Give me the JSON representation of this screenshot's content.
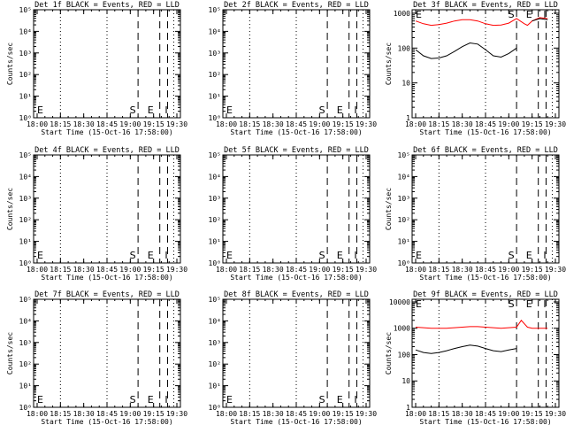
{
  "chart_data": [
    {
      "type": "line",
      "title": "Det 1f BLACK = Events, RED = LLD",
      "xlabel": "Start Time (15-Oct-16 17:58:00)",
      "ylabel": "Counts/sec",
      "y_scale": "log",
      "y_ticks": [
        "10⁰",
        "10¹",
        "10²",
        "10³",
        "10⁴",
        "10⁵"
      ],
      "x_ticks": [
        "18:00",
        "18:15",
        "18:30",
        "18:45",
        "19:00",
        "19:15",
        "19:30"
      ],
      "markers": [
        {
          "label": "E",
          "x": "18:00"
        },
        {
          "label": "S",
          "x": "19:05"
        },
        {
          "label": "E",
          "x": "19:17"
        },
        {
          "label": "I",
          "x": "19:22"
        }
      ],
      "series": []
    },
    {
      "type": "line",
      "title": "Det 2f BLACK = Events, RED = LLD",
      "xlabel": "Start Time (15-Oct-16 17:58:00)",
      "ylabel": "",
      "y_scale": "log",
      "y_ticks": [
        "10⁰",
        "10¹",
        "10²",
        "10³",
        "10⁴",
        "10⁵"
      ],
      "x_ticks": [
        "18:00",
        "18:15",
        "18:30",
        "18:45",
        "19:00",
        "19:15",
        "19:30"
      ],
      "markers": [
        {
          "label": "E",
          "x": "18:00"
        },
        {
          "label": "S",
          "x": "19:05"
        },
        {
          "label": "E",
          "x": "19:17"
        },
        {
          "label": "I",
          "x": "19:22"
        }
      ],
      "series": []
    },
    {
      "type": "line",
      "title": "Det 3f BLACK = Events, RED = LLD",
      "xlabel": "Start Time (15-Oct-16 17:58:00)",
      "ylabel": "Counts/sec",
      "y_scale": "log",
      "y_ticks": [
        "1",
        "10",
        "100",
        "1000"
      ],
      "x_ticks": [
        "18:00",
        "18:15",
        "18:30",
        "18:45",
        "19:00",
        "19:15",
        "19:30"
      ],
      "markers": [
        {
          "label": "E",
          "x": "18:00"
        },
        {
          "label": "S",
          "x": "19:05"
        },
        {
          "label": "E",
          "x": "19:17"
        },
        {
          "label": "I",
          "x": "19:22"
        }
      ],
      "series": [
        {
          "color": "#ff0000",
          "x": [
            0,
            5,
            10,
            15,
            20,
            25,
            30,
            35,
            40,
            45,
            50,
            55,
            60,
            65,
            70,
            72,
            75,
            80,
            85
          ],
          "y": [
            600,
            500,
            450,
            470,
            520,
            600,
            650,
            650,
            600,
            500,
            450,
            460,
            520,
            700,
            500,
            450,
            600,
            750,
            700
          ]
        },
        {
          "color": "#000000",
          "x": [
            0,
            5,
            10,
            15,
            20,
            25,
            30,
            35,
            40,
            45,
            50,
            55,
            60,
            65,
            70,
            72,
            75,
            80,
            85
          ],
          "y": [
            90,
            60,
            50,
            52,
            60,
            80,
            110,
            140,
            130,
            90,
            60,
            55,
            70,
            100,
            null,
            null,
            600,
            700,
            650
          ]
        }
      ]
    },
    {
      "type": "line",
      "title": "Det 4f BLACK = Events, RED = LLD",
      "xlabel": "Start Time (15-Oct-16 17:58:00)",
      "ylabel": "Counts/sec",
      "y_scale": "log",
      "y_ticks": [
        "10⁰",
        "10¹",
        "10²",
        "10³",
        "10⁴",
        "10⁵"
      ],
      "x_ticks": [
        "18:00",
        "18:15",
        "18:30",
        "18:45",
        "19:00",
        "19:15",
        "19:30"
      ],
      "markers": [
        {
          "label": "E",
          "x": "18:00"
        },
        {
          "label": "S",
          "x": "19:05"
        },
        {
          "label": "E",
          "x": "19:17"
        },
        {
          "label": "I",
          "x": "19:22"
        }
      ],
      "series": []
    },
    {
      "type": "line",
      "title": "Det 5f BLACK = Events, RED = LLD",
      "xlabel": "Start Time (15-Oct-16 17:58:00)",
      "ylabel": "",
      "y_scale": "log",
      "y_ticks": [
        "10⁰",
        "10¹",
        "10²",
        "10³",
        "10⁴",
        "10⁵"
      ],
      "x_ticks": [
        "18:00",
        "18:15",
        "18:30",
        "18:45",
        "19:00",
        "19:15",
        "19:30"
      ],
      "markers": [
        {
          "label": "E",
          "x": "18:00"
        },
        {
          "label": "S",
          "x": "19:05"
        },
        {
          "label": "E",
          "x": "19:17"
        },
        {
          "label": "I",
          "x": "19:22"
        }
      ],
      "series": []
    },
    {
      "type": "line",
      "title": "Det 6f BLACK = Events, RED = LLD",
      "xlabel": "Start Time (15-Oct-16 17:58:00)",
      "ylabel": "Counts/sec",
      "y_scale": "log",
      "y_ticks": [
        "10⁰",
        "10¹",
        "10²",
        "10³",
        "10⁴",
        "10⁵"
      ],
      "x_ticks": [
        "18:00",
        "18:15",
        "18:30",
        "18:45",
        "19:00",
        "19:15",
        "19:30"
      ],
      "markers": [
        {
          "label": "E",
          "x": "18:00"
        },
        {
          "label": "S",
          "x": "19:05"
        },
        {
          "label": "E",
          "x": "19:17"
        },
        {
          "label": "I",
          "x": "19:22"
        }
      ],
      "series": []
    },
    {
      "type": "line",
      "title": "Det 7f BLACK = Events, RED = LLD",
      "xlabel": "Start Time (15-Oct-16 17:58:00)",
      "ylabel": "Counts/sec",
      "y_scale": "log",
      "y_ticks": [
        "10⁰",
        "10¹",
        "10²",
        "10³",
        "10⁴",
        "10⁵"
      ],
      "x_ticks": [
        "18:00",
        "18:15",
        "18:30",
        "18:45",
        "19:00",
        "19:15",
        "19:30"
      ],
      "markers": [
        {
          "label": "E",
          "x": "18:00"
        },
        {
          "label": "S",
          "x": "19:05"
        },
        {
          "label": "E",
          "x": "19:17"
        },
        {
          "label": "I",
          "x": "19:22"
        }
      ],
      "series": []
    },
    {
      "type": "line",
      "title": "Det 8f BLACK = Events, RED = LLD",
      "xlabel": "Start Time (15-Oct-16 17:58:00)",
      "ylabel": "",
      "y_scale": "log",
      "y_ticks": [
        "10⁰",
        "10¹",
        "10²",
        "10³",
        "10⁴",
        "10⁵"
      ],
      "x_ticks": [
        "18:00",
        "18:15",
        "18:30",
        "18:45",
        "19:00",
        "19:15",
        "19:30"
      ],
      "markers": [
        {
          "label": "E",
          "x": "18:00"
        },
        {
          "label": "S",
          "x": "19:05"
        },
        {
          "label": "E",
          "x": "19:17"
        },
        {
          "label": "I",
          "x": "19:22"
        }
      ],
      "series": []
    },
    {
      "type": "line",
      "title": "Det 9f BLACK = Events, RED = LLD",
      "xlabel": "Start Time (15-Oct-16 17:58:00)",
      "ylabel": "Counts/sec",
      "y_scale": "log",
      "y_ticks": [
        "1",
        "10",
        "100",
        "1000",
        "10000"
      ],
      "x_ticks": [
        "18:00",
        "18:15",
        "18:30",
        "18:45",
        "19:00",
        "19:15",
        "19:30"
      ],
      "markers": [
        {
          "label": "E",
          "x": "18:00"
        },
        {
          "label": "S",
          "x": "19:05"
        },
        {
          "label": "E",
          "x": "19:17"
        },
        {
          "label": "I",
          "x": "19:22"
        }
      ],
      "series": [
        {
          "color": "#ff0000",
          "x": [
            0,
            5,
            10,
            15,
            20,
            25,
            30,
            35,
            40,
            45,
            50,
            55,
            60,
            65,
            68,
            72,
            75,
            80,
            85
          ],
          "y": [
            1100,
            1050,
            1000,
            1000,
            1000,
            1050,
            1100,
            1150,
            1150,
            1100,
            1050,
            1000,
            1050,
            1100,
            2000,
            1100,
            1000,
            1000,
            1000
          ]
        },
        {
          "color": "#000000",
          "x": [
            0,
            5,
            10,
            15,
            20,
            25,
            30,
            35,
            40,
            45,
            50,
            55,
            60,
            65
          ],
          "y": [
            150,
            120,
            110,
            120,
            140,
            170,
            200,
            230,
            210,
            170,
            140,
            130,
            150,
            170
          ]
        }
      ]
    }
  ]
}
